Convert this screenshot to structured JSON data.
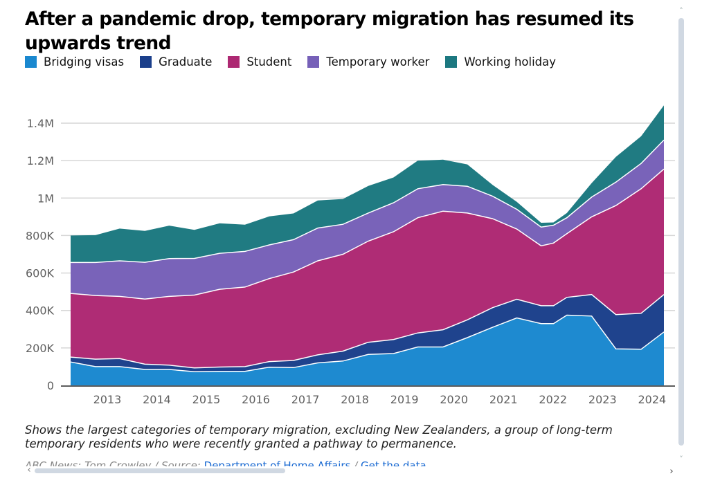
{
  "chart_data": {
    "type": "area",
    "stacked": true,
    "title": "After a pandemic drop, temporary migration has resumed its upwards trend",
    "xlabel": "",
    "ylabel": "",
    "ylim": [
      0,
      1500000
    ],
    "xlim": [
      2012.26,
      2024.24
    ],
    "grid": true,
    "legend_position": "top-left",
    "y_ticks": [
      0,
      200000,
      400000,
      600000,
      800000,
      1000000,
      1200000,
      1400000
    ],
    "y_tick_labels": [
      "0",
      "200K",
      "400K",
      "600K",
      "800K",
      "1M",
      "1.2M",
      "1.4M"
    ],
    "x_ticks": [
      2013,
      2014,
      2015,
      2016,
      2017,
      2018,
      2019,
      2020,
      2021,
      2022,
      2023,
      2024
    ],
    "x_tick_labels": [
      "2013",
      "2014",
      "2015",
      "2016",
      "2017",
      "2018",
      "2019",
      "2020",
      "2021",
      "2022",
      "2023",
      "2024"
    ],
    "x": [
      2012.26,
      2012.76,
      2013.25,
      2013.76,
      2014.25,
      2014.76,
      2015.27,
      2015.78,
      2016.27,
      2016.76,
      2017.25,
      2017.76,
      2018.27,
      2018.78,
      2019.27,
      2019.78,
      2020.27,
      2020.78,
      2021.27,
      2021.76,
      2022.01,
      2022.28,
      2022.78,
      2023.27,
      2023.78,
      2024.24
    ],
    "series": [
      {
        "name": "Bridging visas",
        "color": "#1a88cf",
        "values": [
          125000,
          100000,
          100000,
          85000,
          85000,
          73000,
          75000,
          75000,
          97000,
          95000,
          120000,
          130000,
          165000,
          170000,
          205000,
          205000,
          255000,
          310000,
          360000,
          330000,
          330000,
          375000,
          370000,
          195000,
          193000,
          285000
        ]
      },
      {
        "name": "Graduate",
        "color": "#1b3f8b",
        "values": [
          26000,
          40000,
          43000,
          28000,
          23000,
          20000,
          23000,
          25000,
          30000,
          38000,
          43000,
          53000,
          65000,
          75000,
          75000,
          92000,
          95000,
          105000,
          100000,
          95000,
          95000,
          95000,
          115000,
          183000,
          192000,
          200000
        ]
      },
      {
        "name": "Student",
        "color": "#ad2872",
        "values": [
          340000,
          340000,
          332000,
          348000,
          367000,
          389000,
          415000,
          425000,
          443000,
          472000,
          502000,
          517000,
          540000,
          575000,
          615000,
          633000,
          570000,
          475000,
          375000,
          320000,
          335000,
          340000,
          415000,
          582000,
          665000,
          670000
        ]
      },
      {
        "name": "Temporary worker",
        "color": "#7660b8",
        "values": [
          165000,
          176000,
          190000,
          196000,
          202000,
          196000,
          192000,
          190000,
          180000,
          173000,
          175000,
          160000,
          150000,
          155000,
          155000,
          142000,
          143000,
          120000,
          105000,
          100000,
          95000,
          85000,
          105000,
          125000,
          135000,
          155000
        ]
      },
      {
        "name": "Working holiday",
        "color": "#1c7880",
        "values": [
          144000,
          146000,
          172000,
          168000,
          176000,
          152000,
          160000,
          143000,
          152000,
          140000,
          147000,
          135000,
          145000,
          135000,
          150000,
          133000,
          117000,
          60000,
          40000,
          23000,
          15000,
          25000,
          75000,
          135000,
          145000,
          185000
        ]
      }
    ],
    "caption": "Shows the largest categories of temporary migration, excluding New Zealanders, a group of long-term temporary residents who were recently granted a pathway to permanence."
  },
  "header": {
    "title": "After a pandemic drop, temporary migration has resumed its upwards trend"
  },
  "legend": [
    {
      "label": "Bridging visas",
      "color": "#1a88cf"
    },
    {
      "label": "Graduate",
      "color": "#1b3f8b"
    },
    {
      "label": "Student",
      "color": "#ad2872"
    },
    {
      "label": "Temporary worker",
      "color": "#7660b8"
    },
    {
      "label": "Working holiday",
      "color": "#1c7880"
    }
  ],
  "footer": {
    "caption": "Shows the largest categories of temporary migration, excluding New Zealanders, a group of long-term temporary residents who were recently granted a pathway to permanence.",
    "source_prefix": "ABC News: Tom Crowley / Source: ",
    "source_link": "Department of Home Affairs",
    "separator": " / ",
    "data_link": "Get the data"
  },
  "scrollbars": {
    "up_icon": "˄",
    "down_icon": "˅",
    "left_icon": "‹",
    "right_icon": "›"
  }
}
